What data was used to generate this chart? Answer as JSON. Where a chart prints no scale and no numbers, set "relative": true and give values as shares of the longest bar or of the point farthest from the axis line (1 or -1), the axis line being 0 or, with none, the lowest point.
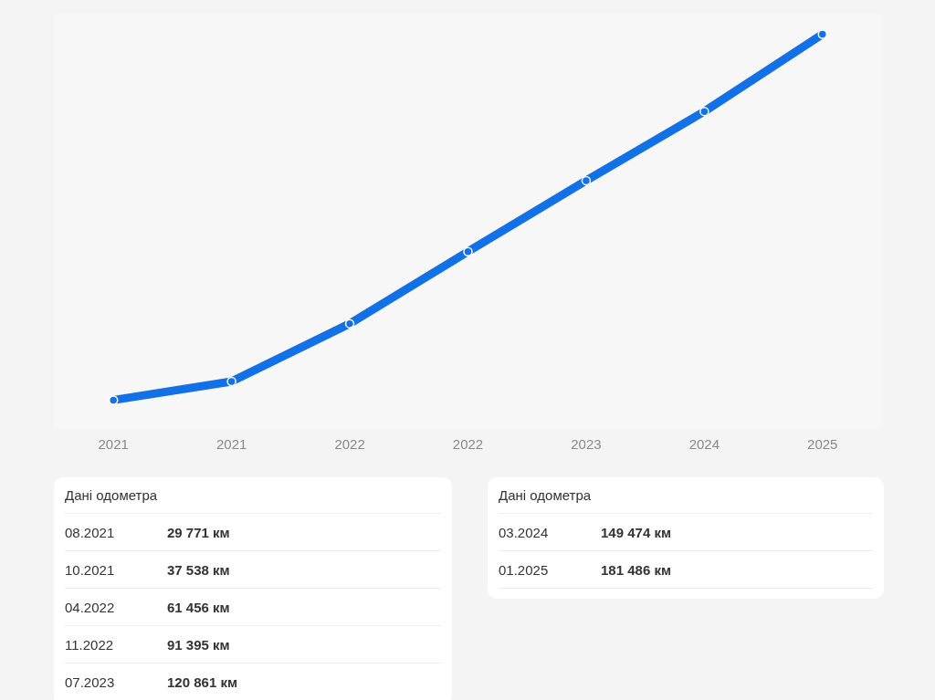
{
  "chart_data": {
    "type": "line",
    "categories": [
      "2021",
      "2021",
      "2022",
      "2022",
      "2023",
      "2024",
      "2025"
    ],
    "relative": true,
    "series": [
      {
        "color": "#1271e6",
        "values": [
          0,
          0.051,
          0.209,
          0.406,
          0.6,
          0.789,
          1
        ]
      }
    ],
    "tick_labels": "x",
    "marker": "circle",
    "line_style": "solid",
    "grid": false,
    "annotations": [
      "Дані одометра",
      "08.2021",
      "29 771 км",
      "10.2021",
      "37 538 км",
      "04.2022",
      "61 456 км",
      "11.2022",
      "91 395 км",
      "07.2023",
      "120 861 км",
      "Дані одометра",
      "03.2024",
      "149 474 км",
      "01.2025",
      "181 486 км"
    ]
  }
}
